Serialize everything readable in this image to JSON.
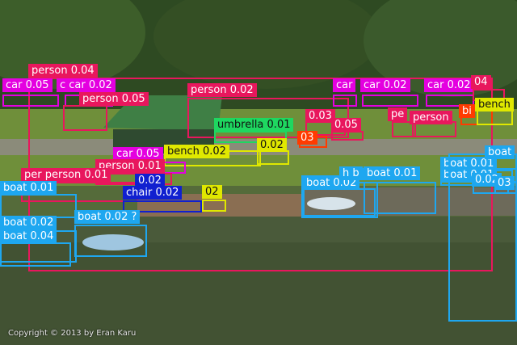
{
  "image": {
    "copyright": "Copyright © 2013 by Eran Karu"
  },
  "colors": {
    "person": "#e8175d",
    "car": "#e400e0",
    "boat": "#1ea7f0",
    "bench": "#e0e800",
    "umbrella": "#1ed760",
    "chair": "#1020d0",
    "bird": "#ff3b00",
    "water": "#4a5a3a",
    "trees": "#2e4a22",
    "grass": "#6f8f3a"
  },
  "detections": [
    {
      "name": "det-person-1",
      "label": "person 0.04",
      "cls": "person"
    },
    {
      "name": "det-car-1",
      "label": "car 0.05",
      "cls": "car"
    },
    {
      "name": "det-car-2",
      "label": "c car 0.02",
      "cls": "car"
    },
    {
      "name": "det-person-2",
      "label": "person 0.05",
      "cls": "person"
    },
    {
      "name": "det-person-3",
      "label": "person 0.02",
      "cls": "person"
    },
    {
      "name": "det-car-3",
      "label": "car",
      "cls": "car"
    },
    {
      "name": "det-car-4",
      "label": "car 0.02",
      "cls": "car"
    },
    {
      "name": "det-car-5",
      "label": "car 0.02",
      "cls": "car"
    },
    {
      "name": "det-person-4",
      "label": "04",
      "cls": "person"
    },
    {
      "name": "det-person-5",
      "label": "0.03",
      "cls": "person"
    },
    {
      "name": "det-person-6",
      "label": "pe",
      "cls": "person"
    },
    {
      "name": "det-person-7",
      "label": "person",
      "cls": "person"
    },
    {
      "name": "det-bird-1",
      "label": "bi",
      "cls": "bird"
    },
    {
      "name": "det-bench-1",
      "label": "bench",
      "cls": "bench"
    },
    {
      "name": "det-umbrella-1",
      "label": "umbrella 0.01",
      "cls": "umbrella"
    },
    {
      "name": "det-person-8",
      "label": "0.05",
      "cls": "person"
    },
    {
      "name": "det-bird-2",
      "label": "03",
      "cls": "bird"
    },
    {
      "name": "det-bench-2",
      "label": "bench 0.02",
      "cls": "bench"
    },
    {
      "name": "det-bench-3",
      "label": "0.02",
      "cls": "bench"
    },
    {
      "name": "det-car-6",
      "label": "car 0.05",
      "cls": "car"
    },
    {
      "name": "det-person-9",
      "label": "person 0.01",
      "cls": "person"
    },
    {
      "name": "det-person-10",
      "label": "per person 0.01",
      "cls": "person"
    },
    {
      "name": "det-chair-1",
      "label": "0.02",
      "cls": "chair"
    },
    {
      "name": "det-chair-2",
      "label": "chair 0.02",
      "cls": "chair"
    },
    {
      "name": "det-bench-4",
      "label": "02",
      "cls": "bench"
    },
    {
      "name": "det-boat-1",
      "label": "boat 0.01",
      "cls": "boat"
    },
    {
      "name": "det-boat-2",
      "label": "boat 0.01",
      "cls": "boat"
    },
    {
      "name": "det-boat-3",
      "label": "boat 0.02",
      "cls": "boat"
    },
    {
      "name": "det-boat-4",
      "label": "boat 0.04",
      "cls": "boat"
    },
    {
      "name": "det-boat-5",
      "label": "boat 0.02 ?",
      "cls": "boat"
    },
    {
      "name": "det-boat-6",
      "label": "boat 0.01",
      "cls": "boat"
    },
    {
      "name": "det-boat-7",
      "label": "boat 0.02",
      "cls": "boat"
    },
    {
      "name": "det-boat-8",
      "label": "h b",
      "cls": "boat"
    },
    {
      "name": "det-boat-9",
      "label": "boat 0.01",
      "cls": "boat"
    },
    {
      "name": "det-boat-10",
      "label": "boat 0.01",
      "cls": "boat"
    },
    {
      "name": "det-boat-11",
      "label": "boat",
      "cls": "boat"
    },
    {
      "name": "det-boat-12",
      "label": "0.02",
      "cls": "boat"
    },
    {
      "name": "det-boat-13",
      "label": "03",
      "cls": "boat"
    }
  ]
}
